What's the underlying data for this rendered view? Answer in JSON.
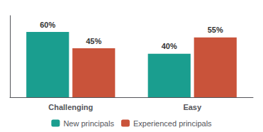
{
  "chart_data": {
    "type": "bar",
    "categories": [
      "Challenging",
      "Easy"
    ],
    "series": [
      {
        "name": "New principals",
        "color": "#1A9E8F",
        "values": [
          60,
          40
        ],
        "value_labels": [
          "60%",
          "40%"
        ]
      },
      {
        "name": "Experienced principals",
        "color": "#C9533A",
        "values": [
          45,
          55
        ],
        "value_labels": [
          "45%",
          "55%"
        ]
      }
    ],
    "ylim": [
      0,
      75
    ],
    "yticks": [],
    "data_labels": true,
    "tick_labels": "x",
    "legend": "bottom",
    "grid": false
  }
}
